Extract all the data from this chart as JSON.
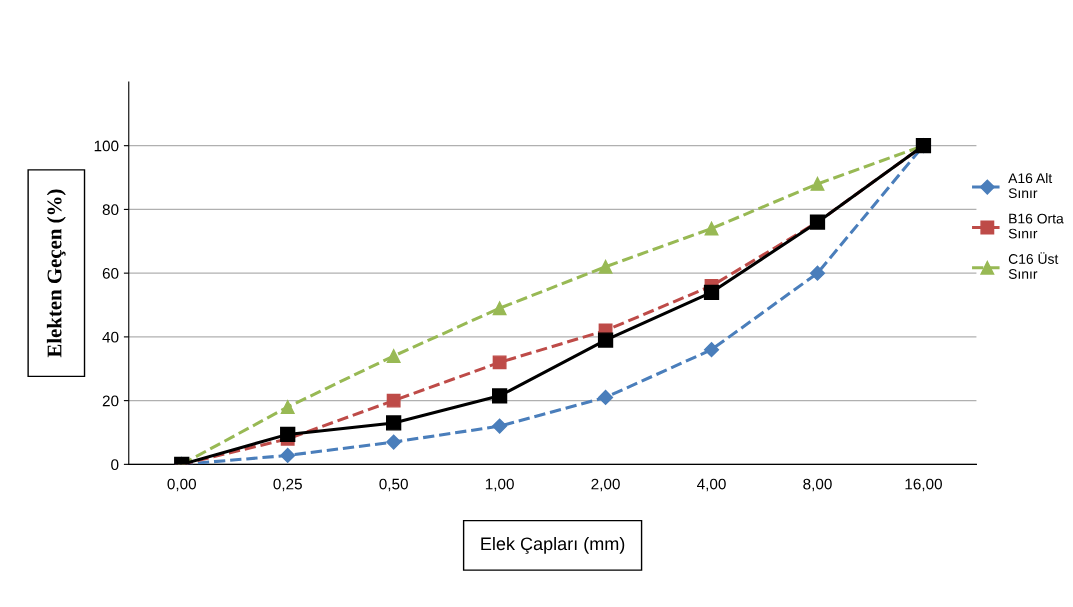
{
  "chart_data": {
    "type": "line",
    "xlabel": "Elek Çapları (mm)",
    "ylabel": "Elekten Geçen (%)",
    "categories": [
      "0,00",
      "0,25",
      "0,50",
      "1,00",
      "2,00",
      "4,00",
      "8,00",
      "16,00"
    ],
    "ylim": [
      0,
      120
    ],
    "yticks": [
      0,
      20,
      40,
      60,
      80,
      100
    ],
    "grid": "y",
    "legend": "right",
    "series": [
      {
        "name": "A16 Alt\nSınır",
        "color": "#4a7ebb",
        "marker": "diamond",
        "line_style": "dashed",
        "values": [
          0,
          2.8,
          7,
          12,
          21,
          36,
          60,
          100
        ]
      },
      {
        "name": "B16 Orta\nSınır",
        "color": "#be4b48",
        "marker": "square",
        "line_style": "dashed",
        "values": [
          0,
          8,
          20,
          32,
          42,
          56,
          76,
          100
        ]
      },
      {
        "name": "C16 Üst\nSınır",
        "color": "#98b954",
        "marker": "triangle",
        "line_style": "dashed",
        "values": [
          0,
          18,
          34,
          49,
          62,
          74,
          88,
          100
        ]
      },
      {
        "color": "#000000",
        "marker": "square",
        "line_style": "solid",
        "values": [
          0,
          9.4,
          13,
          21.5,
          39,
          54,
          76,
          100
        ]
      }
    ]
  }
}
